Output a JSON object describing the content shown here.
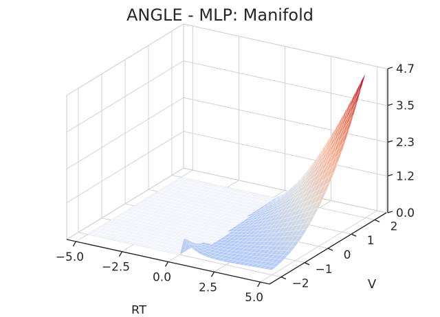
{
  "chart_data": {
    "type": "surface3d",
    "title": "ANGLE - MLP: Manifold",
    "xlabel": "RT",
    "ylabel": "V",
    "zlabel": "",
    "xlim": [
      -5.5,
      5.5
    ],
    "ylim": [
      -2.5,
      2.5
    ],
    "zlim": [
      0,
      4.7
    ],
    "xticks": [
      -5.0,
      -2.5,
      0.0,
      2.5,
      5.0
    ],
    "xtick_labels": [
      "−5.0",
      "−2.5",
      "0.0",
      "2.5",
      "5.0"
    ],
    "yticks": [
      -2,
      -1,
      0,
      1,
      2
    ],
    "ytick_labels": [
      "−2",
      "−1",
      "0",
      "1",
      "2"
    ],
    "zticks": [
      0.0,
      1.2,
      2.3,
      3.5,
      4.7
    ],
    "ztick_labels": [
      "0.0",
      "1.2",
      "2.3",
      "3.5",
      "4.7"
    ],
    "grid": true,
    "colormap": "coolwarm",
    "colormap_stops": [
      "#3b4cc0",
      "#6f92f3",
      "#aac7fd",
      "#dddddd",
      "#f7b89c",
      "#e7745b",
      "#b40426"
    ],
    "surface_shape": "Flat near zero for RT below 0; a narrow peak at RT 0 to 0.2 near V = -2 (about 0.9); the surface rises steeply toward RT = 5, V = 2, reaching a maximum of about 4.7 at the far corner.",
    "sample_points": [
      {
        "x": -5.0,
        "y": -2.0,
        "z": 0.0
      },
      {
        "x": 0.1,
        "y": -2.0,
        "z": 0.9
      },
      {
        "x": 2.5,
        "y": 0.0,
        "z": 0.5
      },
      {
        "x": 5.0,
        "y": 0.0,
        "z": 1.3
      },
      {
        "x": 5.0,
        "y": 2.0,
        "z": 4.7
      }
    ]
  }
}
